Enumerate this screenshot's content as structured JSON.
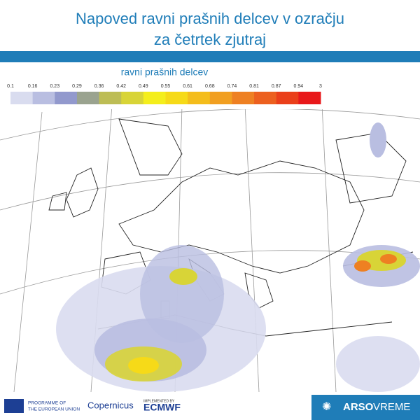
{
  "header": {
    "title_lines": [
      "Napoved ravni prašnih delcev v ozračju",
      "za četrtek zjutraj"
    ]
  },
  "legend": {
    "title": "ravni prašnih delcev",
    "labels": [
      "0.1",
      "0.16",
      "0.23",
      "0.29",
      "0.36",
      "0.42",
      "0.49",
      "0.55",
      "0.61",
      "0.68",
      "0.74",
      "0.81",
      "0.87",
      "0.94",
      "3"
    ],
    "colors": [
      "#d9dcef",
      "#b9bee1",
      "#9299cd",
      "#9aa38f",
      "#bdbd55",
      "#d8d437",
      "#f4ee1c",
      "#f6da18",
      "#f4bd1c",
      "#f19f21",
      "#ee8022",
      "#ec601f",
      "#ea3f1a",
      "#e8181a"
    ]
  },
  "footer": {
    "eu": [
      "PROGRAMME OF",
      "THE EUROPEAN UNION"
    ],
    "copernicus": "Copernicus",
    "implemented": "IMPLEMENTED BY",
    "ecmwf": "ECMWF",
    "brand": [
      "ARSO",
      "VREME"
    ]
  }
}
